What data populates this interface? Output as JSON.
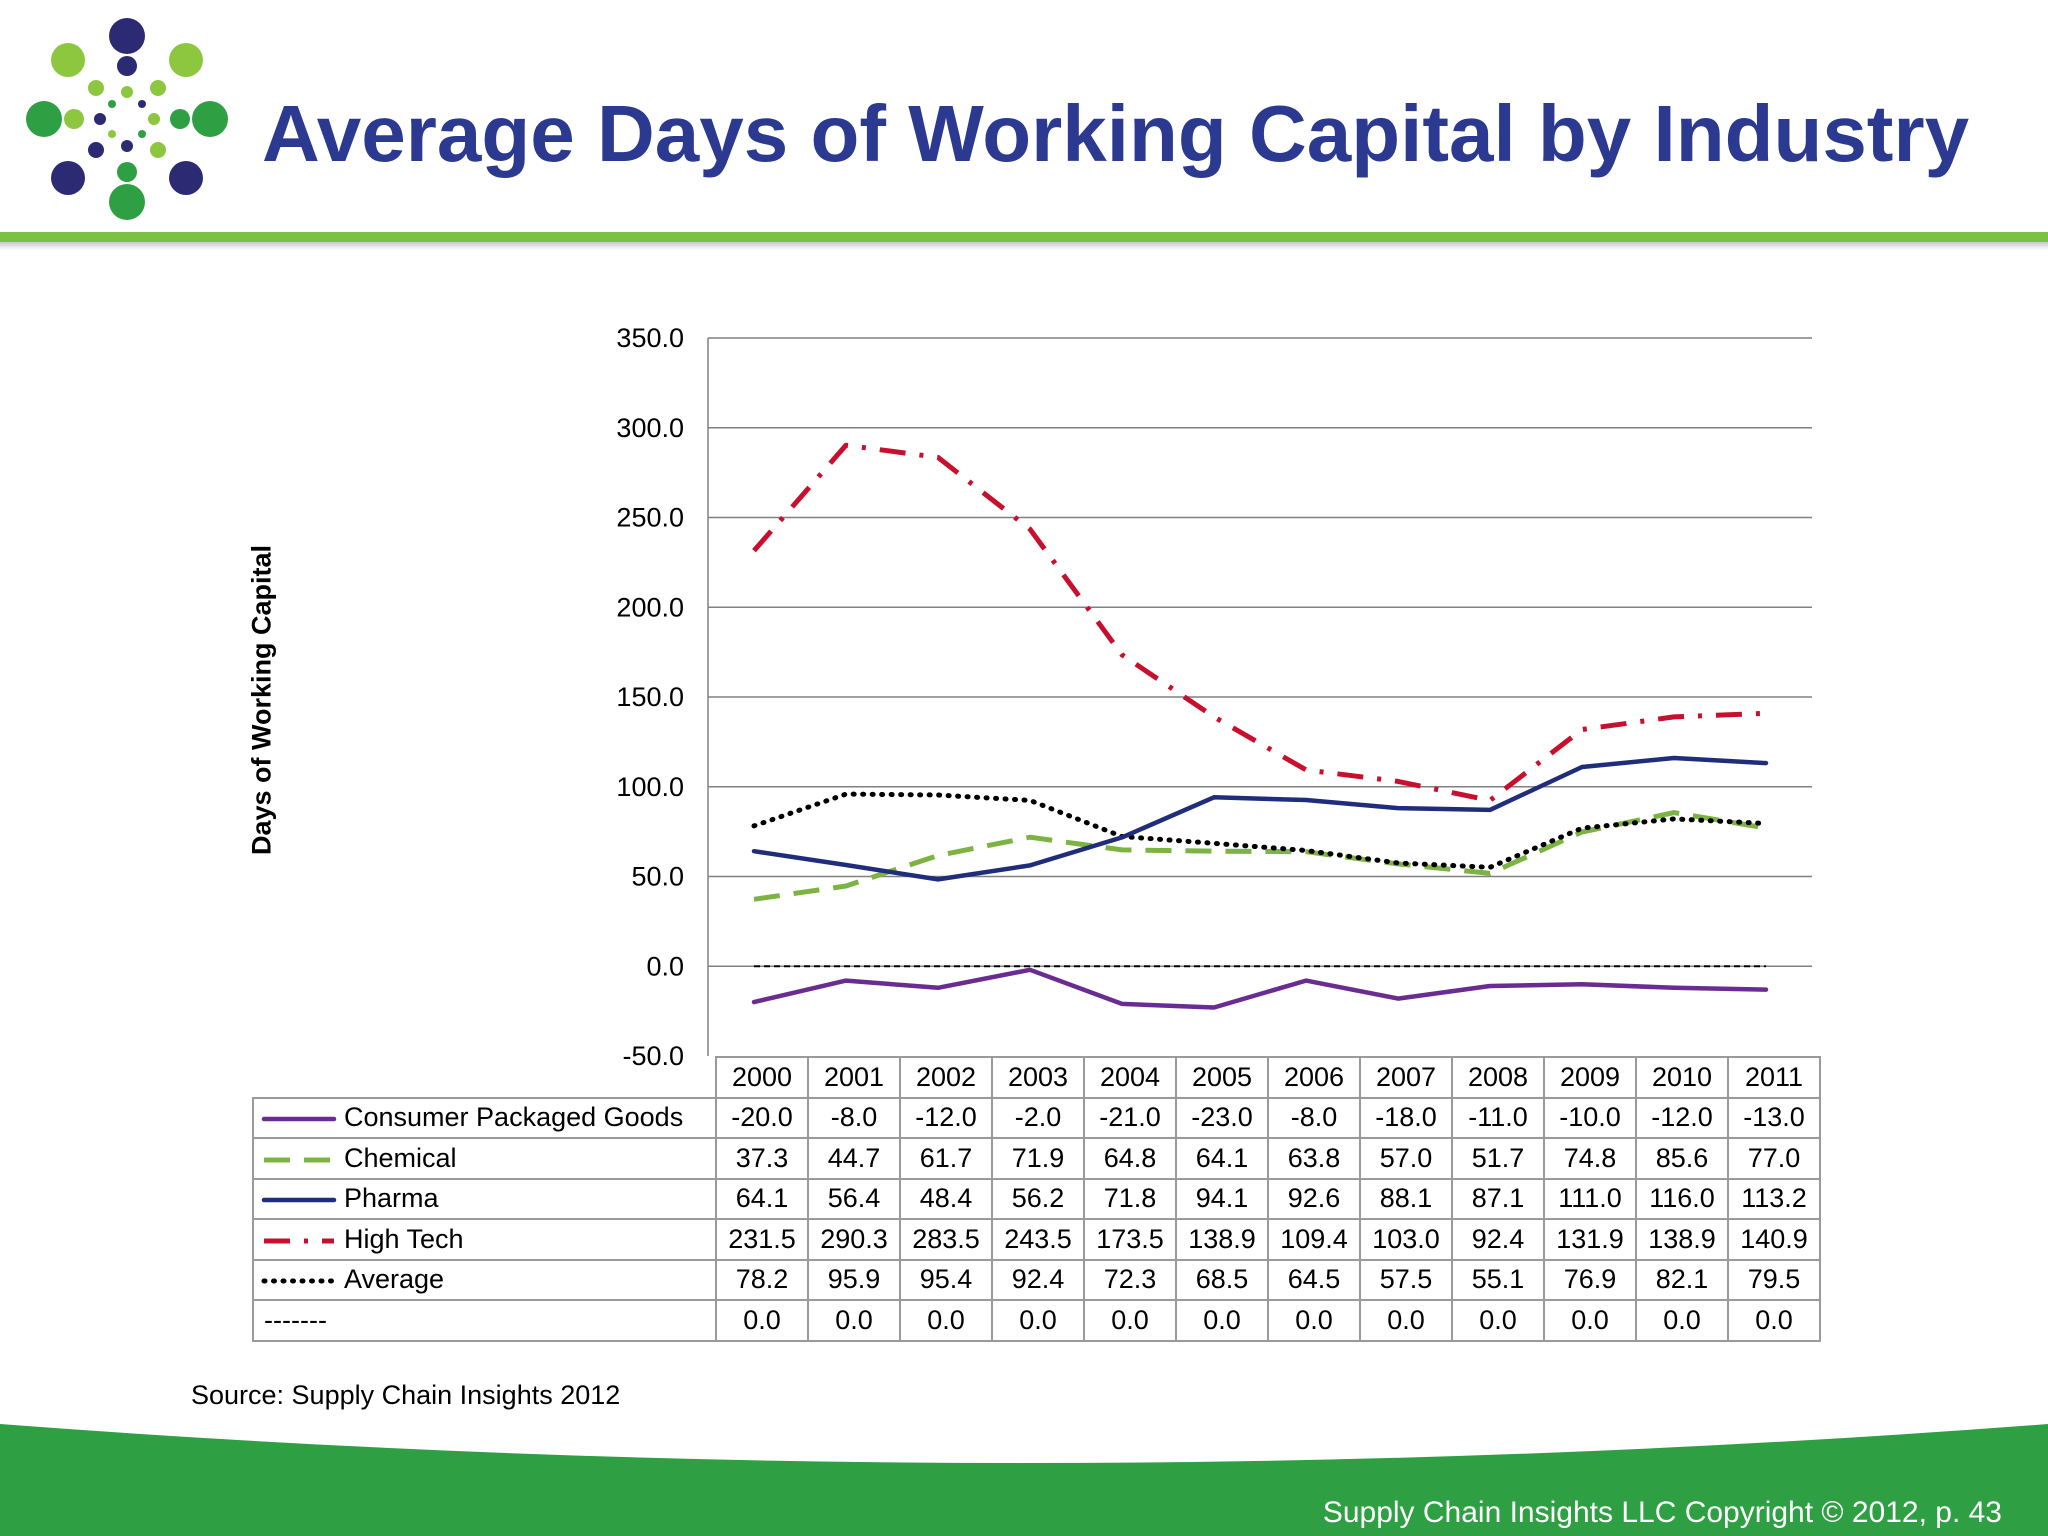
{
  "slide": {
    "title": "Average Days of Working Capital by Industry",
    "source": "Source:  Supply Chain Insights 2012",
    "footer": "Supply Chain Insights LLC Copyright © 2012, p. 43",
    "colors": {
      "title": "#2b3990",
      "accent_green": "#7cc142",
      "footer_green": "#2ea043"
    }
  },
  "chart_data": {
    "type": "line",
    "ylabel": "Days of Working Capital",
    "ylim": [
      -50,
      350
    ],
    "y_ticks": [
      "350.0",
      "300.0",
      "250.0",
      "200.0",
      "150.0",
      "100.0",
      "50.0",
      "0.0",
      "-50.0"
    ],
    "y_tick_values": [
      350,
      300,
      250,
      200,
      150,
      100,
      50,
      0,
      -50
    ],
    "grid": true,
    "legend": "data-table",
    "categories": [
      "2000",
      "2001",
      "2002",
      "2003",
      "2004",
      "2005",
      "2006",
      "2007",
      "2008",
      "2009",
      "2010",
      "2011"
    ],
    "series": [
      {
        "name": "Consumer Packaged Goods",
        "color": "#6b2c91",
        "style": "solid",
        "values": [
          -20.0,
          -8.0,
          -12.0,
          -2.0,
          -21.0,
          -23.0,
          -8.0,
          -18.0,
          -11.0,
          -10.0,
          -12.0,
          -13.0
        ],
        "labels": [
          "-20.0",
          "-8.0",
          "-12.0",
          "-2.0",
          "-21.0",
          "-23.0",
          "-8.0",
          "-18.0",
          "-11.0",
          "-10.0",
          "-12.0",
          "-13.0"
        ]
      },
      {
        "name": "Chemical",
        "color": "#7cb342",
        "style": "dashed",
        "values": [
          37.3,
          44.7,
          61.7,
          71.9,
          64.8,
          64.1,
          63.8,
          57.0,
          51.7,
          74.8,
          85.6,
          77.0
        ],
        "labels": [
          "37.3",
          "44.7",
          "61.7",
          "71.9",
          "64.8",
          "64.1",
          "63.8",
          "57.0",
          "51.7",
          "74.8",
          "85.6",
          "77.0"
        ]
      },
      {
        "name": "Pharma",
        "color": "#1f2d7a",
        "style": "solid",
        "values": [
          64.1,
          56.4,
          48.4,
          56.2,
          71.8,
          94.1,
          92.6,
          88.1,
          87.1,
          111.0,
          116.0,
          113.2
        ],
        "labels": [
          "64.1",
          "56.4",
          "48.4",
          "56.2",
          "71.8",
          "94.1",
          "92.6",
          "88.1",
          "87.1",
          "111.0",
          "116.0",
          "113.2"
        ]
      },
      {
        "name": "High Tech",
        "color": "#c8102e",
        "style": "dashdot",
        "values": [
          231.5,
          290.3,
          283.5,
          243.5,
          173.5,
          138.9,
          109.4,
          103.0,
          92.4,
          131.9,
          138.9,
          140.9
        ],
        "labels": [
          "231.5",
          "290.3",
          "283.5",
          "243.5",
          "173.5",
          "138.9",
          "109.4",
          "103.0",
          "92.4",
          "131.9",
          "138.9",
          "140.9"
        ]
      },
      {
        "name": "Average",
        "color": "#000000",
        "style": "dotted",
        "values": [
          78.2,
          95.9,
          95.4,
          92.4,
          72.3,
          68.5,
          64.5,
          57.5,
          55.1,
          76.9,
          82.1,
          79.5
        ],
        "labels": [
          "78.2",
          "95.9",
          "95.4",
          "92.4",
          "72.3",
          "68.5",
          "64.5",
          "57.5",
          "55.1",
          "76.9",
          "82.1",
          "79.5"
        ]
      },
      {
        "name": "-------",
        "color": "#000000",
        "style": "thin-dashed",
        "values": [
          0.0,
          0.0,
          0.0,
          0.0,
          0.0,
          0.0,
          0.0,
          0.0,
          0.0,
          0.0,
          0.0,
          0.0
        ],
        "labels": [
          "0.0",
          "0.0",
          "0.0",
          "0.0",
          "0.0",
          "0.0",
          "0.0",
          "0.0",
          "0.0",
          "0.0",
          "0.0",
          "0.0"
        ]
      }
    ]
  }
}
